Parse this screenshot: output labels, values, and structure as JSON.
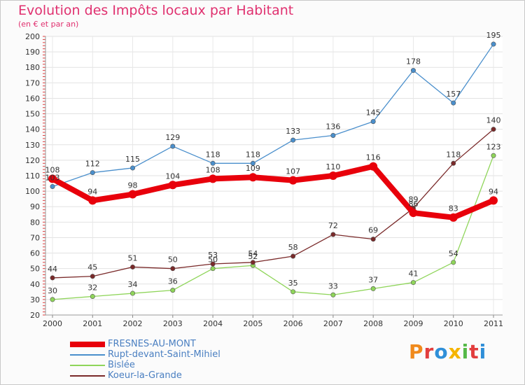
{
  "header": {
    "title": "Evolution des Impôts locaux par Habitant",
    "subtitle": "(en € et par an)"
  },
  "logo": {
    "text": "Proxiti",
    "letter_colors": [
      "#f08a1c",
      "#e23d3d",
      "#2f8fd8",
      "#f5b400",
      "#55b947",
      "#e23d3d",
      "#2f8fd8"
    ]
  },
  "chart_data": {
    "type": "line",
    "title": "Evolution des Impôts locaux par Habitant",
    "subtitle": "(en € et par an)",
    "xlabel": "",
    "ylabel": "",
    "x": [
      "2000",
      "2001",
      "2002",
      "2003",
      "2004",
      "2005",
      "2006",
      "2007",
      "2008",
      "2009",
      "2010",
      "2011"
    ],
    "ylim": [
      20,
      200
    ],
    "yticks": [
      20,
      30,
      40,
      50,
      60,
      70,
      80,
      90,
      100,
      110,
      120,
      130,
      140,
      150,
      160,
      170,
      180,
      190,
      200
    ],
    "grid": true,
    "legend_position": "bottom-left",
    "series": [
      {
        "name": "FRESNES-AU-MONT",
        "color": "#e8000b",
        "values": [
          108,
          94,
          98,
          104,
          108,
          109,
          107,
          110,
          116,
          86,
          83,
          94
        ],
        "labels": [
          "108",
          "94",
          "98",
          "104",
          "108",
          "109",
          "107",
          "110",
          "116",
          "86",
          "83",
          "94"
        ]
      },
      {
        "name": "Rupt-devant-Saint-Mihiel",
        "color": "#4a8fcc",
        "values": [
          103,
          112,
          115,
          129,
          118,
          118,
          133,
          136,
          145,
          178,
          157,
          195
        ],
        "labels": [
          "103",
          "112",
          "115",
          "129",
          "118",
          "118",
          "133",
          "136",
          "145",
          "178",
          "157",
          "195"
        ]
      },
      {
        "name": "Bislée",
        "color": "#8fd55a",
        "values": [
          30,
          32,
          34,
          36,
          50,
          52,
          35,
          33,
          37,
          41,
          54,
          123
        ],
        "labels": [
          "30",
          "32",
          "34",
          "36",
          "50",
          "52",
          "35",
          "33",
          "37",
          "41",
          "54",
          "123"
        ]
      },
      {
        "name": "Koeur-la-Grande",
        "color": "#7a2a2a",
        "values": [
          44,
          45,
          51,
          50,
          53,
          54,
          58,
          72,
          69,
          89,
          118,
          140
        ],
        "labels": [
          "44",
          "45",
          "51",
          "50",
          "53",
          "54",
          "58",
          "72",
          "69",
          "89",
          "118",
          "140"
        ]
      }
    ]
  }
}
